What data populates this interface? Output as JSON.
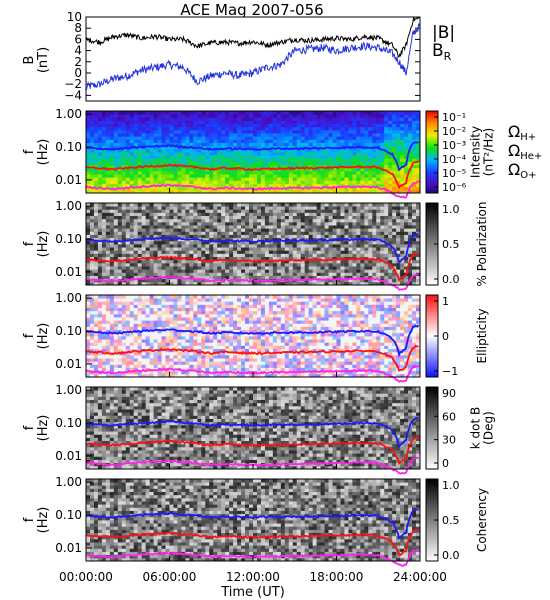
{
  "title": "ACE Mag 2007-056",
  "x_axis": {
    "label": "Time (UT)",
    "ticks": [
      "00:00:00",
      "06:00:00",
      "12:00:00",
      "18:00:00",
      "24:00:00"
    ]
  },
  "colors": {
    "B_total": "#000000",
    "B_R": "#2233dd",
    "H_plus": "#1a1aff",
    "He_plus": "#ff1010",
    "O_plus": "#ff22ee"
  },
  "chart_data": [
    {
      "type": "line",
      "panel": "magnetic-field",
      "ylabel": "B\n(nT)",
      "ylim": [
        -5,
        10
      ],
      "y_ticks": [
        "10",
        "8",
        "6",
        "4",
        "2",
        "0",
        "−2",
        "−4"
      ],
      "legend": {
        "B_total": "|B|",
        "B_R": "B_R"
      },
      "x_hours": [
        0,
        1,
        2,
        3,
        4,
        5,
        6,
        7,
        8,
        9,
        10,
        11,
        12,
        13,
        14,
        15,
        16,
        17,
        18,
        19,
        20,
        21,
        22,
        22.5,
        23,
        23.5,
        24
      ],
      "series": [
        {
          "name": "|B|",
          "values": [
            6.0,
            5.5,
            6.5,
            6.8,
            6.2,
            6.5,
            6.0,
            6.0,
            4.8,
            5.4,
            5.5,
            5.3,
            5.6,
            5.0,
            5.5,
            6.0,
            5.8,
            6.0,
            6.2,
            6.0,
            6.5,
            6.2,
            5.0,
            3.0,
            5.0,
            9.5,
            9.8
          ]
        },
        {
          "name": "B_R",
          "values": [
            -2.5,
            -2.0,
            -1.0,
            -0.5,
            0.5,
            1.0,
            1.5,
            1.0,
            -1.5,
            -0.5,
            0.0,
            -0.5,
            0.0,
            1.0,
            1.5,
            4.0,
            4.2,
            4.5,
            4.0,
            4.5,
            4.8,
            4.5,
            3.5,
            2.0,
            0.0,
            7.0,
            8.5
          ]
        }
      ]
    },
    {
      "type": "heatmap",
      "panel": "intensity",
      "ylabel": "f\n(Hz)",
      "y_ticks": [
        "1.00",
        "0.10",
        "0.01"
      ],
      "colorbar": {
        "label": "Intensity\n(nT²/Hz)",
        "ticks": [
          "10⁻¹",
          "10⁻²",
          "10⁻³",
          "10⁻⁴",
          "10⁻⁵",
          "10⁻⁶"
        ]
      }
    },
    {
      "type": "heatmap",
      "panel": "polarization",
      "ylabel": "f\n(Hz)",
      "y_ticks": [
        "1.00",
        "0.10",
        "0.01"
      ],
      "colorbar": {
        "label": "% Polarization",
        "ticks": [
          "1.0",
          "0.5",
          "0.0"
        ]
      }
    },
    {
      "type": "heatmap",
      "panel": "ellipticity",
      "ylabel": "f\n(Hz)",
      "y_ticks": [
        "1.00",
        "0.10",
        "0.01"
      ],
      "colorbar": {
        "label": "Ellipticity",
        "ticks": [
          "1",
          "0",
          "−1"
        ]
      }
    },
    {
      "type": "heatmap",
      "panel": "k-dot-b",
      "ylabel": "f\n(Hz)",
      "y_ticks": [
        "1.00",
        "0.10",
        "0.01"
      ],
      "colorbar": {
        "label": "k dot B\n(Deg)",
        "ticks": [
          "90",
          "60",
          "30",
          "0"
        ]
      }
    },
    {
      "type": "heatmap",
      "panel": "coherency",
      "ylabel": "f\n(Hz)",
      "y_ticks": [
        "1.00",
        "0.10",
        "0.01"
      ],
      "colorbar": {
        "label": "Coherency",
        "ticks": [
          "1.0",
          "0.5",
          "0.0"
        ]
      }
    }
  ],
  "gyrofrequency": {
    "legend": {
      "H_plus": "ΩH+",
      "He_plus": "ΩHe+",
      "O_plus": "ΩO+"
    },
    "x_hours": [
      0,
      2,
      4,
      6,
      8,
      9,
      10,
      12,
      14,
      16,
      18,
      20,
      21,
      22,
      22.5,
      23,
      23.5,
      24
    ],
    "H_plus_hz": [
      0.095,
      0.085,
      0.1,
      0.11,
      0.095,
      0.085,
      0.09,
      0.085,
      0.09,
      0.09,
      0.095,
      0.1,
      0.095,
      0.06,
      0.02,
      0.03,
      0.13,
      0.15
    ],
    "He_plus_hz": [
      0.024,
      0.021,
      0.025,
      0.028,
      0.024,
      0.021,
      0.023,
      0.021,
      0.022,
      0.023,
      0.024,
      0.025,
      0.024,
      0.015,
      0.006,
      0.008,
      0.032,
      0.037
    ],
    "O_plus_hz": [
      0.006,
      0.0053,
      0.0063,
      0.007,
      0.006,
      0.0053,
      0.0057,
      0.0053,
      0.0056,
      0.0057,
      0.006,
      0.0063,
      0.006,
      0.004,
      0.003,
      0.003,
      0.008,
      0.009
    ]
  }
}
